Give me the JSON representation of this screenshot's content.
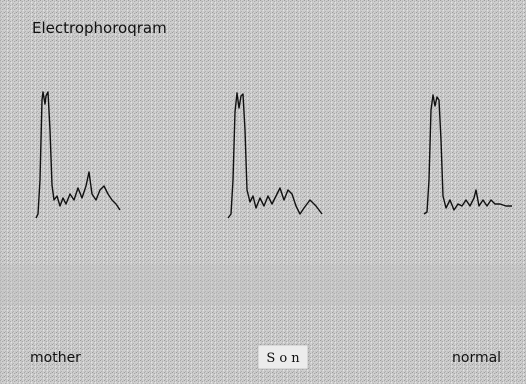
{
  "title": "Electrophoroqram",
  "labels": [
    "mother",
    "S o n",
    "normal"
  ]
}
